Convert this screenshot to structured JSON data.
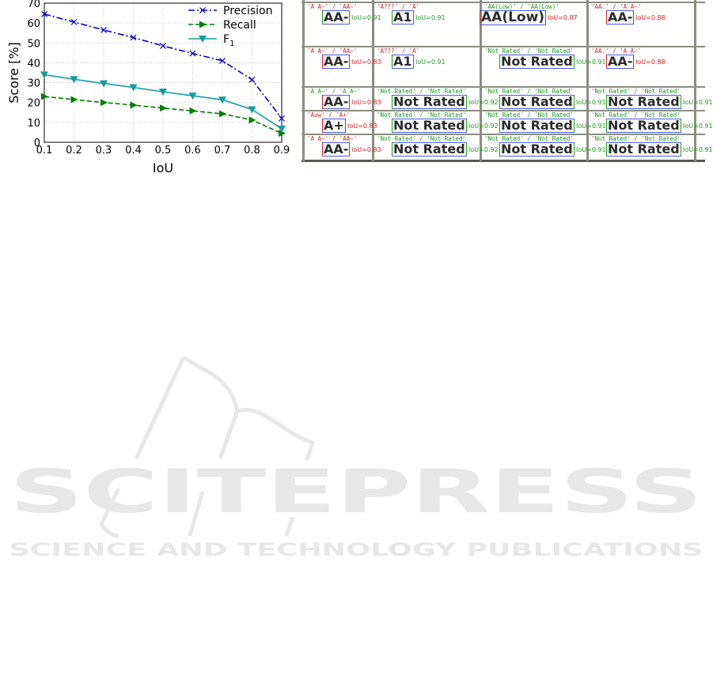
{
  "chart_data": {
    "type": "line",
    "xlabel": "IoU",
    "ylabel": "Score [%]",
    "x": [
      0.1,
      0.2,
      0.3,
      0.4,
      0.5,
      0.6,
      0.7,
      0.8,
      0.9
    ],
    "xticks": [
      "0.1",
      "0.2",
      "0.3",
      "0.4",
      "0.5",
      "0.6",
      "0.7",
      "0.8",
      "0.9"
    ],
    "yticks": [
      "0",
      "10",
      "20",
      "30",
      "40",
      "50",
      "60",
      "70"
    ],
    "xlim": [
      0.1,
      0.9
    ],
    "ylim": [
      0,
      70
    ],
    "grid": true,
    "legend_position": "top-right",
    "series": [
      {
        "name": "Precision",
        "color": "#0000cc",
        "marker": "x",
        "dash": "dashdot",
        "values": [
          64.5,
          60.5,
          56.5,
          52.7,
          48.5,
          44.7,
          41,
          31.5,
          12
        ]
      },
      {
        "name": "Recall",
        "color": "#007f00",
        "marker": "triangle-right",
        "dash": "dashed",
        "values": [
          23,
          21.5,
          20,
          18.7,
          17.2,
          15.8,
          14.3,
          11.2,
          4.5
        ]
      },
      {
        "name": "F1",
        "color": "#129c9c",
        "marker": "triangle-down",
        "dash": "solid",
        "values": [
          34,
          31.7,
          29.6,
          27.6,
          25.4,
          23.4,
          21.4,
          16.5,
          6.8
        ]
      }
    ]
  },
  "colors": {
    "correct": "#1a9a1a",
    "wrong": "#d42020"
  },
  "figure_grid": {
    "rows": [
      [
        {
          "label": "'A A–' / 'AA–'",
          "label_ok": false,
          "word": "AA-",
          "iou": "IoU=0.91",
          "iou_ok": true
        },
        {
          "label": "'A???' / 'A'",
          "label_ok": false,
          "word": "A1",
          "iou": "IoU=0.91",
          "iou_ok": true
        },
        {
          "label": "'AA(Low)' / 'AA(Low)'",
          "label_ok": true,
          "word": "AA(Low)",
          "iou": "IoU=0.87",
          "iou_ok": false
        },
        {
          "label": "'AA.' / 'A A–'",
          "label_ok": false,
          "word": "AA-",
          "iou": "IoU=0.88",
          "iou_ok": false
        }
      ],
      [
        {
          "label": "'A A–' / 'AA–'",
          "label_ok": false,
          "word": "AA-",
          "iou": "IoU=0.83",
          "iou_ok": false
        },
        {
          "label": "'A???' / 'A'",
          "label_ok": false,
          "word": "A1",
          "iou": "IoU=0.91",
          "iou_ok": true
        },
        {
          "label": "'Not Rated' / 'Not Rated'",
          "label_ok": true,
          "word": "Not Rated",
          "iou": "IoU=0.91",
          "iou_ok": true
        },
        {
          "label": "'AA.' / 'A A–'",
          "label_ok": false,
          "word": "AA-",
          "iou": "IoU=0.88",
          "iou_ok": false
        }
      ],
      [
        {
          "label": "'A A–' / 'A A–'",
          "label_ok": true,
          "word": "AA-",
          "iou": "IoU=0.83",
          "iou_ok": false
        },
        {
          "label": "'Not Rated' / 'Not Rated'",
          "label_ok": true,
          "word": "Not Rated",
          "iou": "IoU=0.92",
          "iou_ok": true
        },
        {
          "label": "'Not Rated' / 'Not Rated'",
          "label_ok": true,
          "word": "Not Rated",
          "iou": "IoU=0.91",
          "iou_ok": true
        },
        {
          "label": "'Not Rated' / 'Not Rated'",
          "label_ok": true,
          "word": "Not Rated",
          "iou": "IoU=0.91",
          "iou_ok": true
        }
      ],
      [
        {
          "label": "'Auw' / 'A+'",
          "label_ok": false,
          "word": "A+",
          "iou": "IoU=0.83",
          "iou_ok": false
        },
        {
          "label": "'Not Rated' / 'Not Rated'",
          "label_ok": true,
          "word": "Not Rated",
          "iou": "IoU=0.92",
          "iou_ok": true
        },
        {
          "label": "'Not Rated' / 'Not Rated'",
          "label_ok": true,
          "word": "Not Rated",
          "iou": "IoU=0.91",
          "iou_ok": true
        },
        {
          "label": "'Not Rated' / 'Not Rated'",
          "label_ok": true,
          "word": "Not Rated",
          "iou": "IoU=0.91",
          "iou_ok": true
        }
      ],
      [
        {
          "label": "'A A–' / 'AA–'",
          "label_ok": false,
          "word": "AA-",
          "iou": "IoU=0.83",
          "iou_ok": false
        },
        {
          "label": "'Not Rated' / 'Not Rated'",
          "label_ok": true,
          "word": "Not Rated",
          "iou": "IoU=0.92",
          "iou_ok": true
        },
        {
          "label": "'Not Rated' / 'Not Rated'",
          "label_ok": true,
          "word": "Not Rated",
          "iou": "IoU=0.91",
          "iou_ok": true
        },
        {
          "label": "'Not Rated' / 'Not Rated'",
          "label_ok": true,
          "word": "Not Rated",
          "iou": "IoU=0.91",
          "iou_ok": true
        }
      ]
    ]
  },
  "watermark": {
    "title": "SCITEPRESS",
    "subtitle": "SCIENCE AND TECHNOLOGY PUBLICATIONS"
  }
}
